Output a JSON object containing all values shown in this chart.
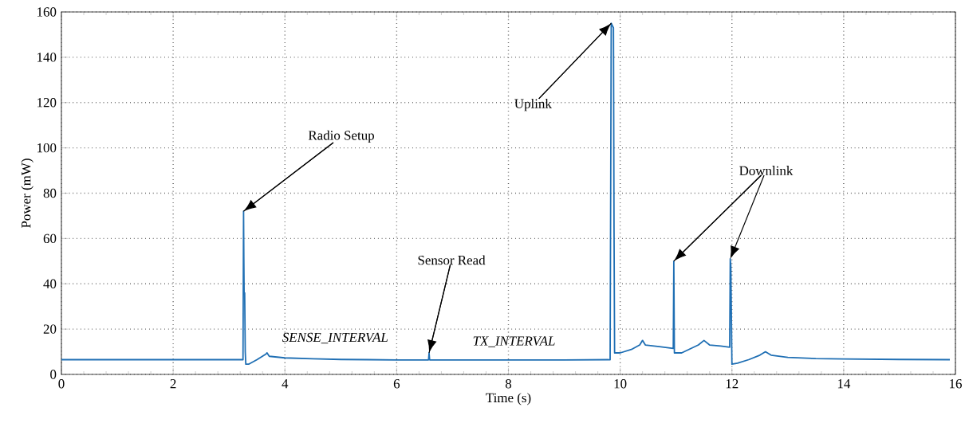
{
  "chart_data": {
    "type": "line",
    "xlabel": "Time (s)",
    "ylabel": "Power (mW)",
    "xlim": [
      0,
      16
    ],
    "ylim": [
      0,
      160
    ],
    "xticks": [
      0,
      2,
      4,
      6,
      8,
      10,
      12,
      14,
      16
    ],
    "yticks": [
      0,
      20,
      40,
      60,
      80,
      100,
      120,
      140,
      160
    ],
    "grid": true,
    "marker": "none",
    "line_style": "solid",
    "series": [
      {
        "color": "#1f6fb4",
        "x": [
          0,
          1,
          2,
          3,
          3.25,
          3.26,
          3.265,
          3.27,
          3.28,
          3.29,
          3.3,
          3.35,
          3.5,
          3.66,
          3.68,
          3.72,
          4.0,
          4.5,
          5.0,
          5.5,
          6.0,
          6.57,
          6.58,
          6.59,
          7.0,
          8.0,
          9.0,
          9.82,
          9.84,
          9.86,
          9.88,
          9.89,
          9.9,
          10.0,
          10.2,
          10.35,
          10.4,
          10.45,
          10.7,
          10.95,
          10.96,
          10.97,
          11.1,
          11.4,
          11.5,
          11.6,
          11.8,
          11.96,
          11.97,
          11.98,
          12.0,
          12.1,
          12.3,
          12.5,
          12.6,
          12.7,
          13.0,
          13.5,
          14.0,
          15.0,
          15.9
        ],
        "values": [
          6.5,
          6.5,
          6.5,
          6.5,
          6.5,
          72,
          51,
          36,
          36,
          10,
          4.5,
          4.5,
          6.5,
          9,
          9.5,
          8,
          7.3,
          6.9,
          6.6,
          6.5,
          6.4,
          6.4,
          9.5,
          6.4,
          6.4,
          6.4,
          6.4,
          6.5,
          155,
          154,
          153,
          65,
          9.5,
          9.5,
          11,
          13,
          15,
          13,
          12.3,
          11.5,
          50,
          9.5,
          9.5,
          13,
          15,
          13,
          12.5,
          12,
          51,
          48,
          4.5,
          5,
          6.5,
          8.5,
          10,
          8.5,
          7.5,
          7,
          6.8,
          6.6,
          6.5
        ]
      }
    ],
    "annotations": [
      {
        "text": "Radio Setup",
        "x": 3.26,
        "y": 72
      },
      {
        "text": "Sensor Read",
        "x": 6.58,
        "y": 9.5
      },
      {
        "text": "Uplink",
        "x": 9.84,
        "y": 155
      },
      {
        "text": "Downlink",
        "x": 10.96,
        "y": 50
      },
      "SENSE_INTERVAL",
      "TX_INTERVAL"
    ]
  }
}
